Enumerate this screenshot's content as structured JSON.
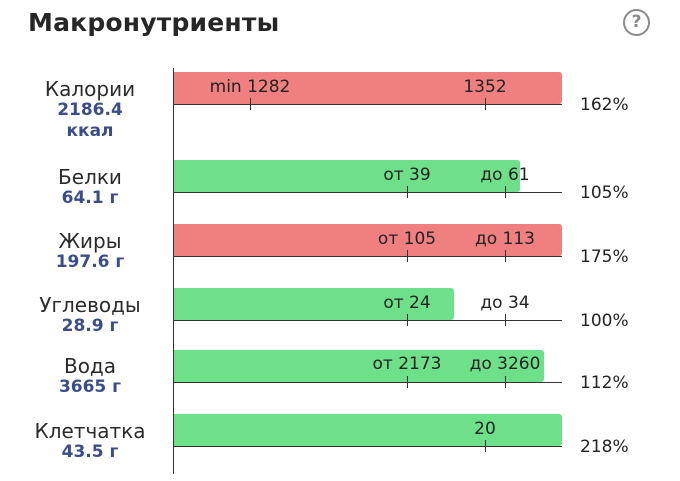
{
  "header": {
    "title": "Макронутриенты",
    "help_icon": "?"
  },
  "colors": {
    "over": "#f08080",
    "ok": "#6ee08a",
    "value": "#3a4d8a"
  },
  "rows": [
    {
      "name": "Калории",
      "value": "2186.4",
      "unit": "ккал",
      "status": "over",
      "percent": "162%",
      "fill_pct": 162,
      "marker1": "min 1282",
      "marker2": "1352"
    },
    {
      "name": "Белки",
      "value": "64.1 г",
      "status": "ok",
      "percent": "105%",
      "fill_pct": 105,
      "marker1": "от 39",
      "marker2": "до 61"
    },
    {
      "name": "Жиры",
      "value": "197.6 г",
      "status": "over",
      "percent": "175%",
      "fill_pct": 175,
      "marker1": "от 105",
      "marker2": "до 113"
    },
    {
      "name": "Углеводы",
      "value": "28.9 г",
      "status": "ok",
      "percent": "100%",
      "fill_pct": 100,
      "marker1": "от 24",
      "marker2": "до 34"
    },
    {
      "name": "Вода",
      "value": "3665 г",
      "status": "ok",
      "percent": "112%",
      "fill_pct": 112,
      "marker1": "от 2173",
      "marker2": "до 3260"
    },
    {
      "name": "Клетчатка",
      "value": "43.5 г",
      "status": "ok",
      "percent": "218%",
      "fill_pct": 218,
      "marker2": "20"
    }
  ]
}
